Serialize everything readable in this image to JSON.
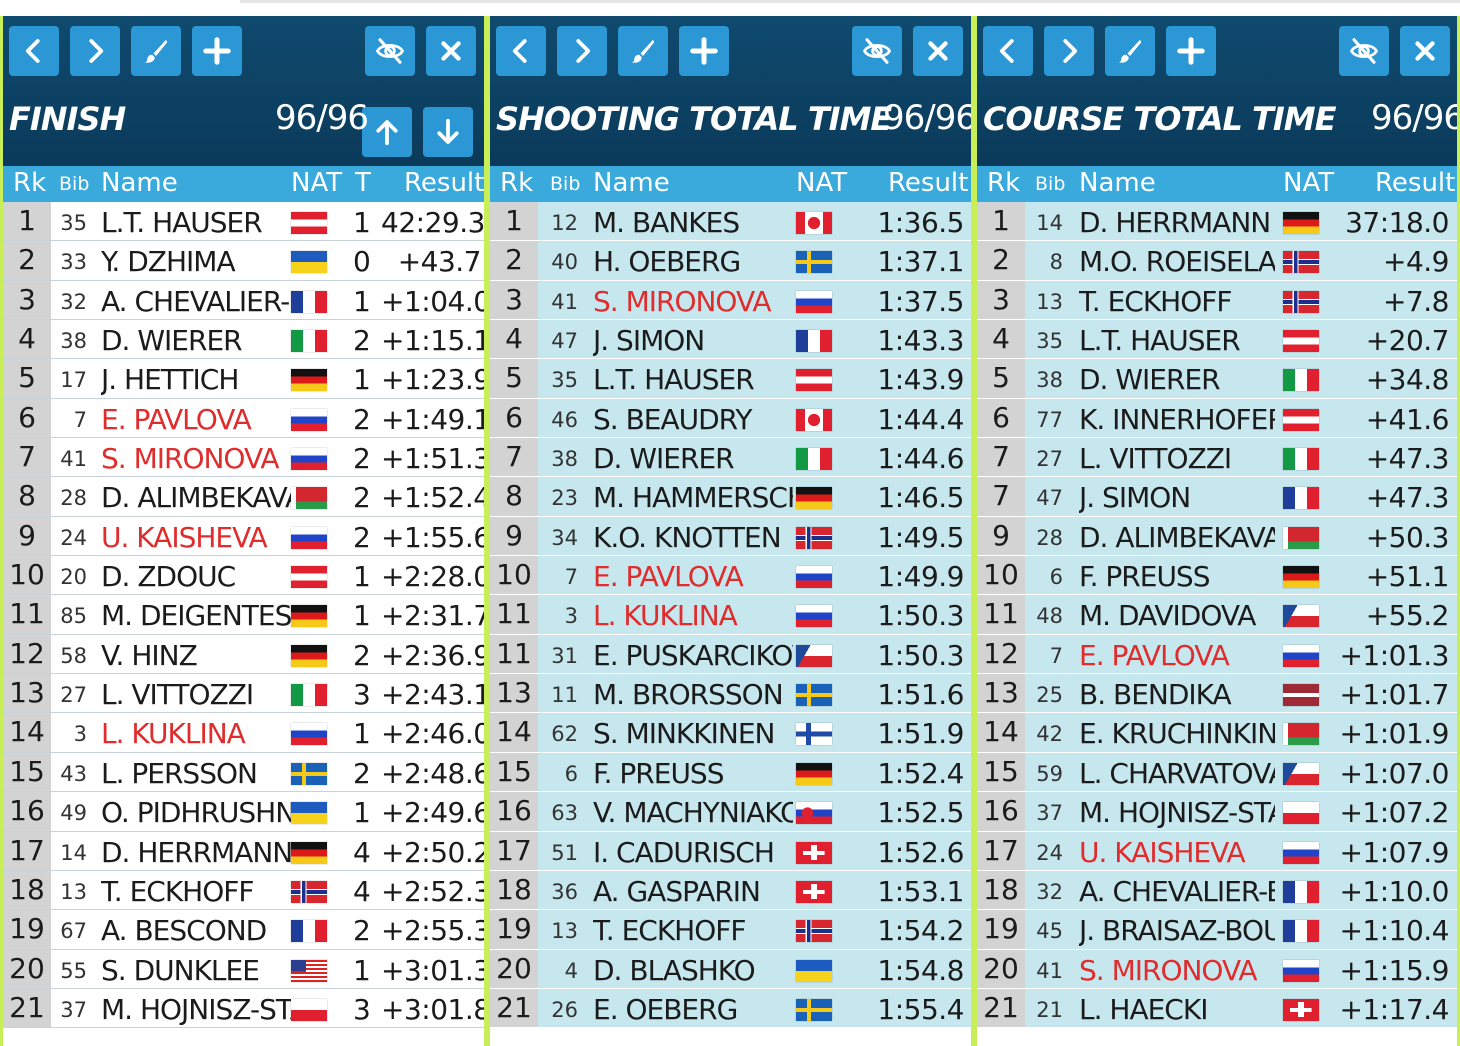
{
  "panels": [
    {
      "title": "FINISH",
      "count": "96/96",
      "headers": {
        "rk": "Rk",
        "bib": "Bib",
        "name": "Name",
        "nat": "NAT",
        "t": "T",
        "result": "Result"
      },
      "rows": [
        {
          "rk": "1",
          "bib": "35",
          "name": "L.T. HAUSER",
          "nat": "AUT",
          "t": "1",
          "result": "42:29.3"
        },
        {
          "rk": "2",
          "bib": "33",
          "name": "Y. DZHIMA",
          "nat": "UKR",
          "t": "0",
          "result": "+43.7"
        },
        {
          "rk": "3",
          "bib": "32",
          "name": "A. CHEVALIER-BC",
          "nat": "FRA",
          "t": "1",
          "result": "+1:04.0"
        },
        {
          "rk": "4",
          "bib": "38",
          "name": "D. WIERER",
          "nat": "ITA",
          "t": "2",
          "result": "+1:15.1"
        },
        {
          "rk": "5",
          "bib": "17",
          "name": "J. HETTICH",
          "nat": "GER",
          "t": "1",
          "result": "+1:23.9"
        },
        {
          "rk": "6",
          "bib": "7",
          "name": "E. PAVLOVA",
          "nat": "RUS",
          "t": "2",
          "result": "+1:49.1"
        },
        {
          "rk": "7",
          "bib": "41",
          "name": "S. MIRONOVA",
          "nat": "RUS",
          "t": "2",
          "result": "+1:51.3"
        },
        {
          "rk": "8",
          "bib": "28",
          "name": "D. ALIMBEKAVA",
          "nat": "BLR",
          "t": "2",
          "result": "+1:52.4"
        },
        {
          "rk": "9",
          "bib": "24",
          "name": "U. KAISHEVA",
          "nat": "RUS",
          "t": "2",
          "result": "+1:55.6"
        },
        {
          "rk": "10",
          "bib": "20",
          "name": "D. ZDOUC",
          "nat": "AUT",
          "t": "1",
          "result": "+2:28.0"
        },
        {
          "rk": "11",
          "bib": "85",
          "name": "M. DEIGENTESCH",
          "nat": "GER",
          "t": "1",
          "result": "+2:31.7"
        },
        {
          "rk": "12",
          "bib": "58",
          "name": "V. HINZ",
          "nat": "GER",
          "t": "2",
          "result": "+2:36.9"
        },
        {
          "rk": "13",
          "bib": "27",
          "name": "L. VITTOZZI",
          "nat": "ITA",
          "t": "3",
          "result": "+2:43.1"
        },
        {
          "rk": "14",
          "bib": "3",
          "name": "L. KUKLINA",
          "nat": "RUS",
          "t": "1",
          "result": "+2:46.0"
        },
        {
          "rk": "15",
          "bib": "43",
          "name": "L. PERSSON",
          "nat": "SWE",
          "t": "2",
          "result": "+2:48.6"
        },
        {
          "rk": "16",
          "bib": "49",
          "name": "O. PIDHRUSHNA",
          "nat": "UKR",
          "t": "1",
          "result": "+2:49.6"
        },
        {
          "rk": "17",
          "bib": "14",
          "name": "D. HERRMANN",
          "nat": "GER",
          "t": "4",
          "result": "+2:50.2"
        },
        {
          "rk": "18",
          "bib": "13",
          "name": "T. ECKHOFF",
          "nat": "NOR",
          "t": "4",
          "result": "+2:52.3"
        },
        {
          "rk": "19",
          "bib": "67",
          "name": "A. BESCOND",
          "nat": "FRA",
          "t": "2",
          "result": "+2:55.3"
        },
        {
          "rk": "20",
          "bib": "55",
          "name": "S. DUNKLEE",
          "nat": "USA",
          "t": "1",
          "result": "+3:01.3"
        },
        {
          "rk": "21",
          "bib": "37",
          "name": "M. HOJNISZ-STAI",
          "nat": "POL",
          "t": "3",
          "result": "+3:01.8"
        }
      ]
    },
    {
      "title": "SHOOTING TOTAL TIME",
      "count": "96/96",
      "headers": {
        "rk": "Rk",
        "bib": "Bib",
        "name": "Name",
        "nat": "NAT",
        "result": "Result"
      },
      "rows": [
        {
          "rk": "1",
          "bib": "12",
          "name": "M. BANKES",
          "nat": "CAN",
          "result": "1:36.5"
        },
        {
          "rk": "2",
          "bib": "40",
          "name": "H. OEBERG",
          "nat": "SWE",
          "result": "1:37.1"
        },
        {
          "rk": "3",
          "bib": "41",
          "name": "S. MIRONOVA",
          "nat": "RUS",
          "result": "1:37.5"
        },
        {
          "rk": "4",
          "bib": "47",
          "name": "J. SIMON",
          "nat": "FRA",
          "result": "1:43.3"
        },
        {
          "rk": "5",
          "bib": "35",
          "name": "L.T. HAUSER",
          "nat": "AUT",
          "result": "1:43.9"
        },
        {
          "rk": "6",
          "bib": "46",
          "name": "S. BEAUDRY",
          "nat": "CAN",
          "result": "1:44.4"
        },
        {
          "rk": "7",
          "bib": "38",
          "name": "D. WIERER",
          "nat": "ITA",
          "result": "1:44.6"
        },
        {
          "rk": "8",
          "bib": "23",
          "name": "M. HAMMERSCHI",
          "nat": "GER",
          "result": "1:46.5"
        },
        {
          "rk": "9",
          "bib": "34",
          "name": "K.O. KNOTTEN",
          "nat": "NOR",
          "result": "1:49.5"
        },
        {
          "rk": "10",
          "bib": "7",
          "name": "E. PAVLOVA",
          "nat": "RUS",
          "result": "1:49.9"
        },
        {
          "rk": "11",
          "bib": "3",
          "name": "L. KUKLINA",
          "nat": "RUS",
          "result": "1:50.3"
        },
        {
          "rk": "11",
          "bib": "31",
          "name": "E. PUSKARCIKOVA",
          "nat": "CZE",
          "result": "1:50.3"
        },
        {
          "rk": "13",
          "bib": "11",
          "name": "M. BRORSSON",
          "nat": "SWE",
          "result": "1:51.6"
        },
        {
          "rk": "14",
          "bib": "62",
          "name": "S. MINKKINEN",
          "nat": "FIN",
          "result": "1:51.9"
        },
        {
          "rk": "15",
          "bib": "6",
          "name": "F. PREUSS",
          "nat": "GER",
          "result": "1:52.4"
        },
        {
          "rk": "16",
          "bib": "63",
          "name": "V. MACHYNIAKOV",
          "nat": "SVK",
          "result": "1:52.5"
        },
        {
          "rk": "17",
          "bib": "51",
          "name": "I. CADURISCH",
          "nat": "SUI",
          "result": "1:52.6"
        },
        {
          "rk": "18",
          "bib": "36",
          "name": "A. GASPARIN",
          "nat": "SUI",
          "result": "1:53.1"
        },
        {
          "rk": "19",
          "bib": "13",
          "name": "T. ECKHOFF",
          "nat": "NOR",
          "result": "1:54.2"
        },
        {
          "rk": "20",
          "bib": "4",
          "name": "D. BLASHKO",
          "nat": "UKR",
          "result": "1:54.8"
        },
        {
          "rk": "21",
          "bib": "26",
          "name": "E. OEBERG",
          "nat": "SWE",
          "result": "1:55.4"
        }
      ]
    },
    {
      "title": "COURSE TOTAL TIME",
      "count": "96/96",
      "headers": {
        "rk": "Rk",
        "bib": "Bib",
        "name": "Name",
        "nat": "NAT",
        "result": "Result"
      },
      "rows": [
        {
          "rk": "1",
          "bib": "14",
          "name": "D. HERRMANN",
          "nat": "GER",
          "result": "37:18.0"
        },
        {
          "rk": "2",
          "bib": "8",
          "name": "M.O. ROEISELAND",
          "nat": "NOR",
          "result": "+4.9"
        },
        {
          "rk": "3",
          "bib": "13",
          "name": "T. ECKHOFF",
          "nat": "NOR",
          "result": "+7.8"
        },
        {
          "rk": "4",
          "bib": "35",
          "name": "L.T. HAUSER",
          "nat": "AUT",
          "result": "+20.7"
        },
        {
          "rk": "5",
          "bib": "38",
          "name": "D. WIERER",
          "nat": "ITA",
          "result": "+34.8"
        },
        {
          "rk": "6",
          "bib": "77",
          "name": "K. INNERHOFER",
          "nat": "AUT",
          "result": "+41.6"
        },
        {
          "rk": "7",
          "bib": "27",
          "name": "L. VITTOZZI",
          "nat": "ITA",
          "result": "+47.3"
        },
        {
          "rk": "7",
          "bib": "47",
          "name": "J. SIMON",
          "nat": "FRA",
          "result": "+47.3"
        },
        {
          "rk": "9",
          "bib": "28",
          "name": "D. ALIMBEKAVA",
          "nat": "BLR",
          "result": "+50.3"
        },
        {
          "rk": "10",
          "bib": "6",
          "name": "F. PREUSS",
          "nat": "GER",
          "result": "+51.1"
        },
        {
          "rk": "11",
          "bib": "48",
          "name": "M. DAVIDOVA",
          "nat": "CZE",
          "result": "+55.2"
        },
        {
          "rk": "12",
          "bib": "7",
          "name": "E. PAVLOVA",
          "nat": "RUS",
          "result": "+1:01.3"
        },
        {
          "rk": "13",
          "bib": "25",
          "name": "B. BENDIKA",
          "nat": "LAT",
          "result": "+1:01.7"
        },
        {
          "rk": "14",
          "bib": "42",
          "name": "E. KRUCHINKINA",
          "nat": "BLR",
          "result": "+1:01.9"
        },
        {
          "rk": "15",
          "bib": "59",
          "name": "L. CHARVATOVA",
          "nat": "CZE",
          "result": "+1:07.0"
        },
        {
          "rk": "16",
          "bib": "37",
          "name": "M. HOJNISZ-STAR",
          "nat": "POL",
          "result": "+1:07.2"
        },
        {
          "rk": "17",
          "bib": "24",
          "name": "U. KAISHEVA",
          "nat": "RUS",
          "result": "+1:07.9"
        },
        {
          "rk": "18",
          "bib": "32",
          "name": "A. CHEVALIER-BOI",
          "nat": "FRA",
          "result": "+1:10.0"
        },
        {
          "rk": "19",
          "bib": "45",
          "name": "J. BRAISAZ-BOUCI",
          "nat": "FRA",
          "result": "+1:10.4"
        },
        {
          "rk": "20",
          "bib": "41",
          "name": "S. MIRONOVA",
          "nat": "RUS",
          "result": "+1:15.9"
        },
        {
          "rk": "21",
          "bib": "21",
          "name": "L. HAECKI",
          "nat": "SUI",
          "result": "+1:17.4"
        }
      ]
    }
  ],
  "icons": [
    "chevron-left-icon",
    "chevron-right-icon",
    "brush-icon",
    "plus-icon",
    "eye-slash-icon",
    "close-icon",
    "arrow-up-icon",
    "arrow-down-icon"
  ],
  "colors": {
    "header_bg": "#0b3a5a",
    "button": "#2b97d5",
    "col_header": "#3aa9dc",
    "border": "#c9ef58",
    "rus_highlight": "#e02c2c",
    "rank_bg": "#d3d3d3",
    "alt_bg": "#c6e7ee"
  }
}
